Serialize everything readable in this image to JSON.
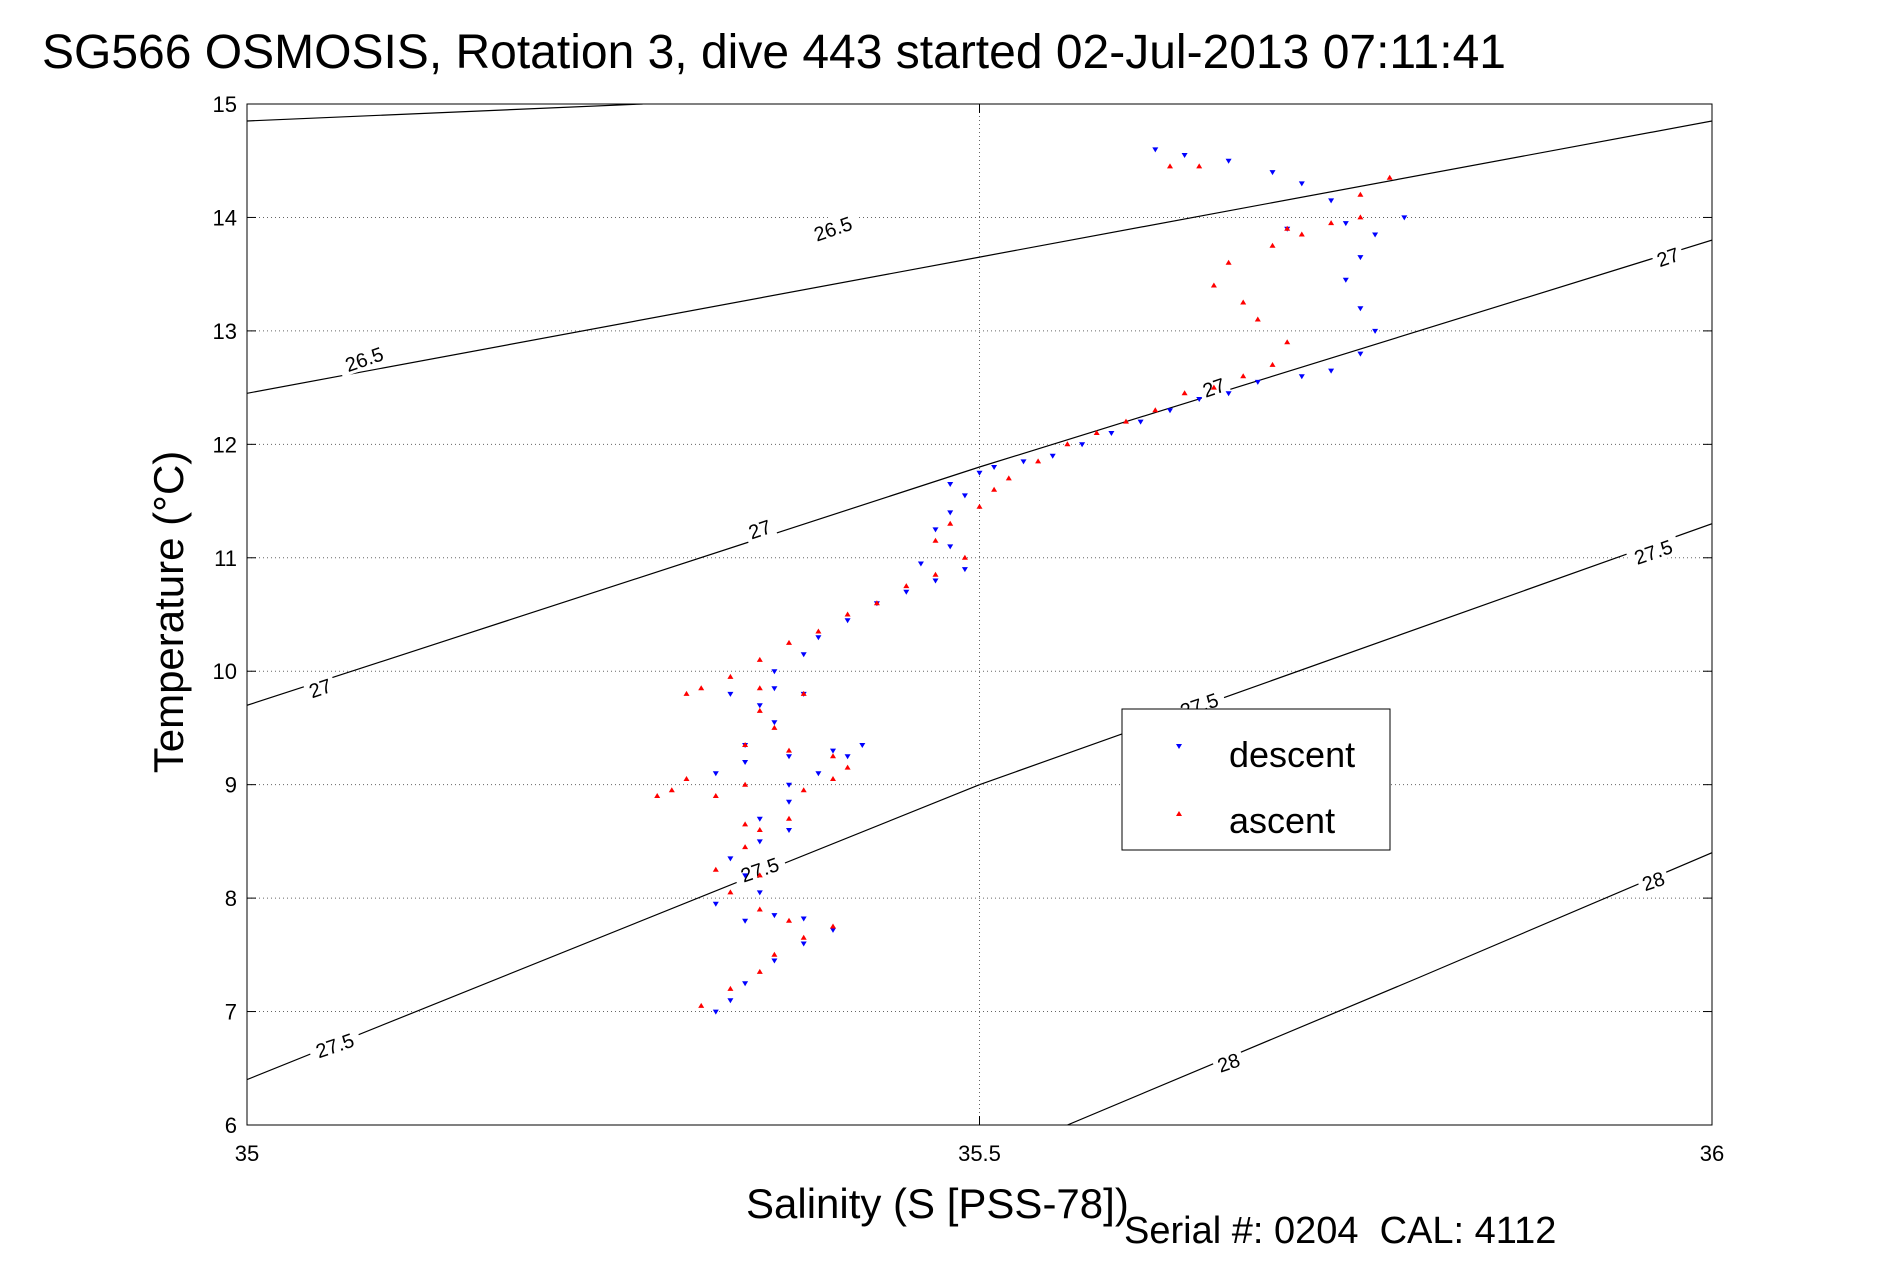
{
  "header": {
    "title": "SG566 OSMOSIS, Rotation 3, dive 443 started 02-Jul-2013 07:11:41"
  },
  "footer": {
    "serial": "Serial #: 0204  CAL: 4112"
  },
  "colors": {
    "descent": "#0000ff",
    "ascent": "#ff0000",
    "isopycnal": "#000000",
    "grid": "#000000"
  },
  "chart_data": {
    "type": "scatter",
    "title": "SG566 OSMOSIS, Rotation 3, dive 443 started 02-Jul-2013 07:11:41",
    "xlabel": "Salinity (S [PSS-78])",
    "ylabel": "Temperature (°C)",
    "xlim": [
      35,
      36
    ],
    "ylim": [
      6,
      15
    ],
    "x_ticks": [
      35,
      35.5,
      36
    ],
    "x_tick_labels": [
      "35",
      "35.5",
      "36"
    ],
    "y_ticks": [
      6,
      7,
      8,
      9,
      10,
      11,
      12,
      13,
      14,
      15
    ],
    "y_tick_labels": [
      "6",
      "7",
      "8",
      "9",
      "10",
      "11",
      "12",
      "13",
      "14",
      "15"
    ],
    "grid": true,
    "legend_position": "center-right",
    "series": [
      {
        "name": "descent",
        "marker": "triangle-down",
        "points": [
          [
            35.32,
            7.0
          ],
          [
            35.33,
            7.1
          ],
          [
            35.34,
            7.25
          ],
          [
            35.36,
            7.45
          ],
          [
            35.38,
            7.6
          ],
          [
            35.4,
            7.72
          ],
          [
            35.38,
            7.82
          ],
          [
            35.36,
            7.85
          ],
          [
            35.34,
            7.8
          ],
          [
            35.32,
            7.95
          ],
          [
            35.35,
            8.05
          ],
          [
            35.34,
            8.2
          ],
          [
            35.33,
            8.35
          ],
          [
            35.35,
            8.5
          ],
          [
            35.37,
            8.6
          ],
          [
            35.35,
            8.7
          ],
          [
            35.37,
            8.85
          ],
          [
            35.37,
            9.0
          ],
          [
            35.39,
            9.1
          ],
          [
            35.41,
            9.25
          ],
          [
            35.42,
            9.35
          ],
          [
            35.4,
            9.3
          ],
          [
            35.37,
            9.25
          ],
          [
            35.34,
            9.2
          ],
          [
            35.32,
            9.1
          ],
          [
            35.34,
            9.35
          ],
          [
            35.36,
            9.55
          ],
          [
            35.35,
            9.7
          ],
          [
            35.38,
            9.8
          ],
          [
            35.36,
            9.85
          ],
          [
            35.33,
            9.8
          ],
          [
            35.36,
            10.0
          ],
          [
            35.38,
            10.15
          ],
          [
            35.39,
            10.3
          ],
          [
            35.41,
            10.45
          ],
          [
            35.43,
            10.6
          ],
          [
            35.45,
            10.7
          ],
          [
            35.47,
            10.8
          ],
          [
            35.49,
            10.9
          ],
          [
            35.46,
            10.95
          ],
          [
            35.48,
            11.1
          ],
          [
            35.47,
            11.25
          ],
          [
            35.48,
            11.4
          ],
          [
            35.49,
            11.55
          ],
          [
            35.48,
            11.65
          ],
          [
            35.5,
            11.75
          ],
          [
            35.51,
            11.8
          ],
          [
            35.53,
            11.85
          ],
          [
            35.55,
            11.9
          ],
          [
            35.57,
            12.0
          ],
          [
            35.59,
            12.1
          ],
          [
            35.61,
            12.2
          ],
          [
            35.63,
            12.3
          ],
          [
            35.65,
            12.4
          ],
          [
            35.67,
            12.45
          ],
          [
            35.69,
            12.55
          ],
          [
            35.72,
            12.6
          ],
          [
            35.74,
            12.65
          ],
          [
            35.76,
            12.8
          ],
          [
            35.77,
            13.0
          ],
          [
            35.76,
            13.2
          ],
          [
            35.75,
            13.45
          ],
          [
            35.76,
            13.65
          ],
          [
            35.77,
            13.85
          ],
          [
            35.79,
            14.0
          ],
          [
            35.75,
            13.95
          ],
          [
            35.71,
            13.9
          ],
          [
            35.74,
            14.15
          ],
          [
            35.72,
            14.3
          ],
          [
            35.7,
            14.4
          ],
          [
            35.67,
            14.5
          ],
          [
            35.64,
            14.55
          ],
          [
            35.62,
            14.6
          ]
        ]
      },
      {
        "name": "ascent",
        "marker": "triangle-up",
        "points": [
          [
            35.31,
            7.05
          ],
          [
            35.33,
            7.2
          ],
          [
            35.35,
            7.35
          ],
          [
            35.36,
            7.5
          ],
          [
            35.38,
            7.65
          ],
          [
            35.4,
            7.75
          ],
          [
            35.37,
            7.8
          ],
          [
            35.35,
            7.9
          ],
          [
            35.33,
            8.05
          ],
          [
            35.35,
            8.2
          ],
          [
            35.32,
            8.25
          ],
          [
            35.34,
            8.45
          ],
          [
            35.35,
            8.6
          ],
          [
            35.37,
            8.7
          ],
          [
            35.34,
            8.65
          ],
          [
            35.32,
            8.9
          ],
          [
            35.29,
            8.95
          ],
          [
            35.28,
            8.9
          ],
          [
            35.3,
            9.05
          ],
          [
            35.34,
            9.0
          ],
          [
            35.38,
            8.95
          ],
          [
            35.4,
            9.05
          ],
          [
            35.41,
            9.15
          ],
          [
            35.4,
            9.25
          ],
          [
            35.37,
            9.3
          ],
          [
            35.34,
            9.35
          ],
          [
            35.36,
            9.5
          ],
          [
            35.35,
            9.65
          ],
          [
            35.38,
            9.8
          ],
          [
            35.35,
            9.85
          ],
          [
            35.31,
            9.85
          ],
          [
            35.3,
            9.8
          ],
          [
            35.33,
            9.95
          ],
          [
            35.35,
            10.1
          ],
          [
            35.37,
            10.25
          ],
          [
            35.39,
            10.35
          ],
          [
            35.41,
            10.5
          ],
          [
            35.43,
            10.6
          ],
          [
            35.45,
            10.75
          ],
          [
            35.47,
            10.85
          ],
          [
            35.49,
            11.0
          ],
          [
            35.47,
            11.15
          ],
          [
            35.48,
            11.3
          ],
          [
            35.5,
            11.45
          ],
          [
            35.51,
            11.6
          ],
          [
            35.52,
            11.7
          ],
          [
            35.54,
            11.85
          ],
          [
            35.56,
            12.0
          ],
          [
            35.58,
            12.1
          ],
          [
            35.6,
            12.2
          ],
          [
            35.62,
            12.3
          ],
          [
            35.64,
            12.45
          ],
          [
            35.66,
            12.5
          ],
          [
            35.68,
            12.6
          ],
          [
            35.7,
            12.7
          ],
          [
            35.71,
            12.9
          ],
          [
            35.69,
            13.1
          ],
          [
            35.68,
            13.25
          ],
          [
            35.66,
            13.4
          ],
          [
            35.67,
            13.6
          ],
          [
            35.7,
            13.75
          ],
          [
            35.72,
            13.85
          ],
          [
            35.74,
            13.95
          ],
          [
            35.76,
            14.0
          ],
          [
            35.71,
            13.9
          ],
          [
            35.65,
            14.45
          ],
          [
            35.63,
            14.45
          ],
          [
            35.78,
            14.35
          ],
          [
            35.76,
            14.2
          ]
        ]
      }
    ],
    "isopycnals": [
      {
        "label": "26.5",
        "points": [
          [
            35.0,
            12.45
          ],
          [
            35.5,
            13.65
          ],
          [
            36.0,
            14.85
          ]
        ]
      },
      {
        "label": "26.5",
        "points": [
          [
            35.0,
            14.85
          ],
          [
            35.27,
            15.0
          ]
        ]
      },
      {
        "label": "27",
        "points": [
          [
            35.0,
            9.7
          ],
          [
            35.5,
            11.8
          ],
          [
            36.0,
            13.8
          ]
        ]
      },
      {
        "label": "27.5",
        "points": [
          [
            35.0,
            6.4
          ],
          [
            35.5,
            9.0
          ],
          [
            36.0,
            11.3
          ]
        ]
      },
      {
        "label": "28",
        "points": [
          [
            35.56,
            6.0
          ],
          [
            35.8,
            7.3
          ],
          [
            36.0,
            8.4
          ]
        ]
      }
    ],
    "isopycnal_labels": [
      {
        "text": "26.5",
        "x": 35.08,
        "y": 12.75
      },
      {
        "text": "26.5",
        "x": 35.4,
        "y": 13.9
      },
      {
        "text": "27",
        "x": 35.05,
        "y": 9.85
      },
      {
        "text": "27",
        "x": 35.35,
        "y": 11.25
      },
      {
        "text": "27",
        "x": 35.66,
        "y": 12.5
      },
      {
        "text": "27",
        "x": 35.97,
        "y": 13.65
      },
      {
        "text": "27.5",
        "x": 35.06,
        "y": 6.7
      },
      {
        "text": "27.5",
        "x": 35.35,
        "y": 8.25
      },
      {
        "text": "27.5",
        "x": 35.65,
        "y": 9.7
      },
      {
        "text": "27.5",
        "x": 35.96,
        "y": 11.05
      },
      {
        "text": "28",
        "x": 35.67,
        "y": 6.55
      },
      {
        "text": "28",
        "x": 35.96,
        "y": 8.15
      }
    ]
  }
}
